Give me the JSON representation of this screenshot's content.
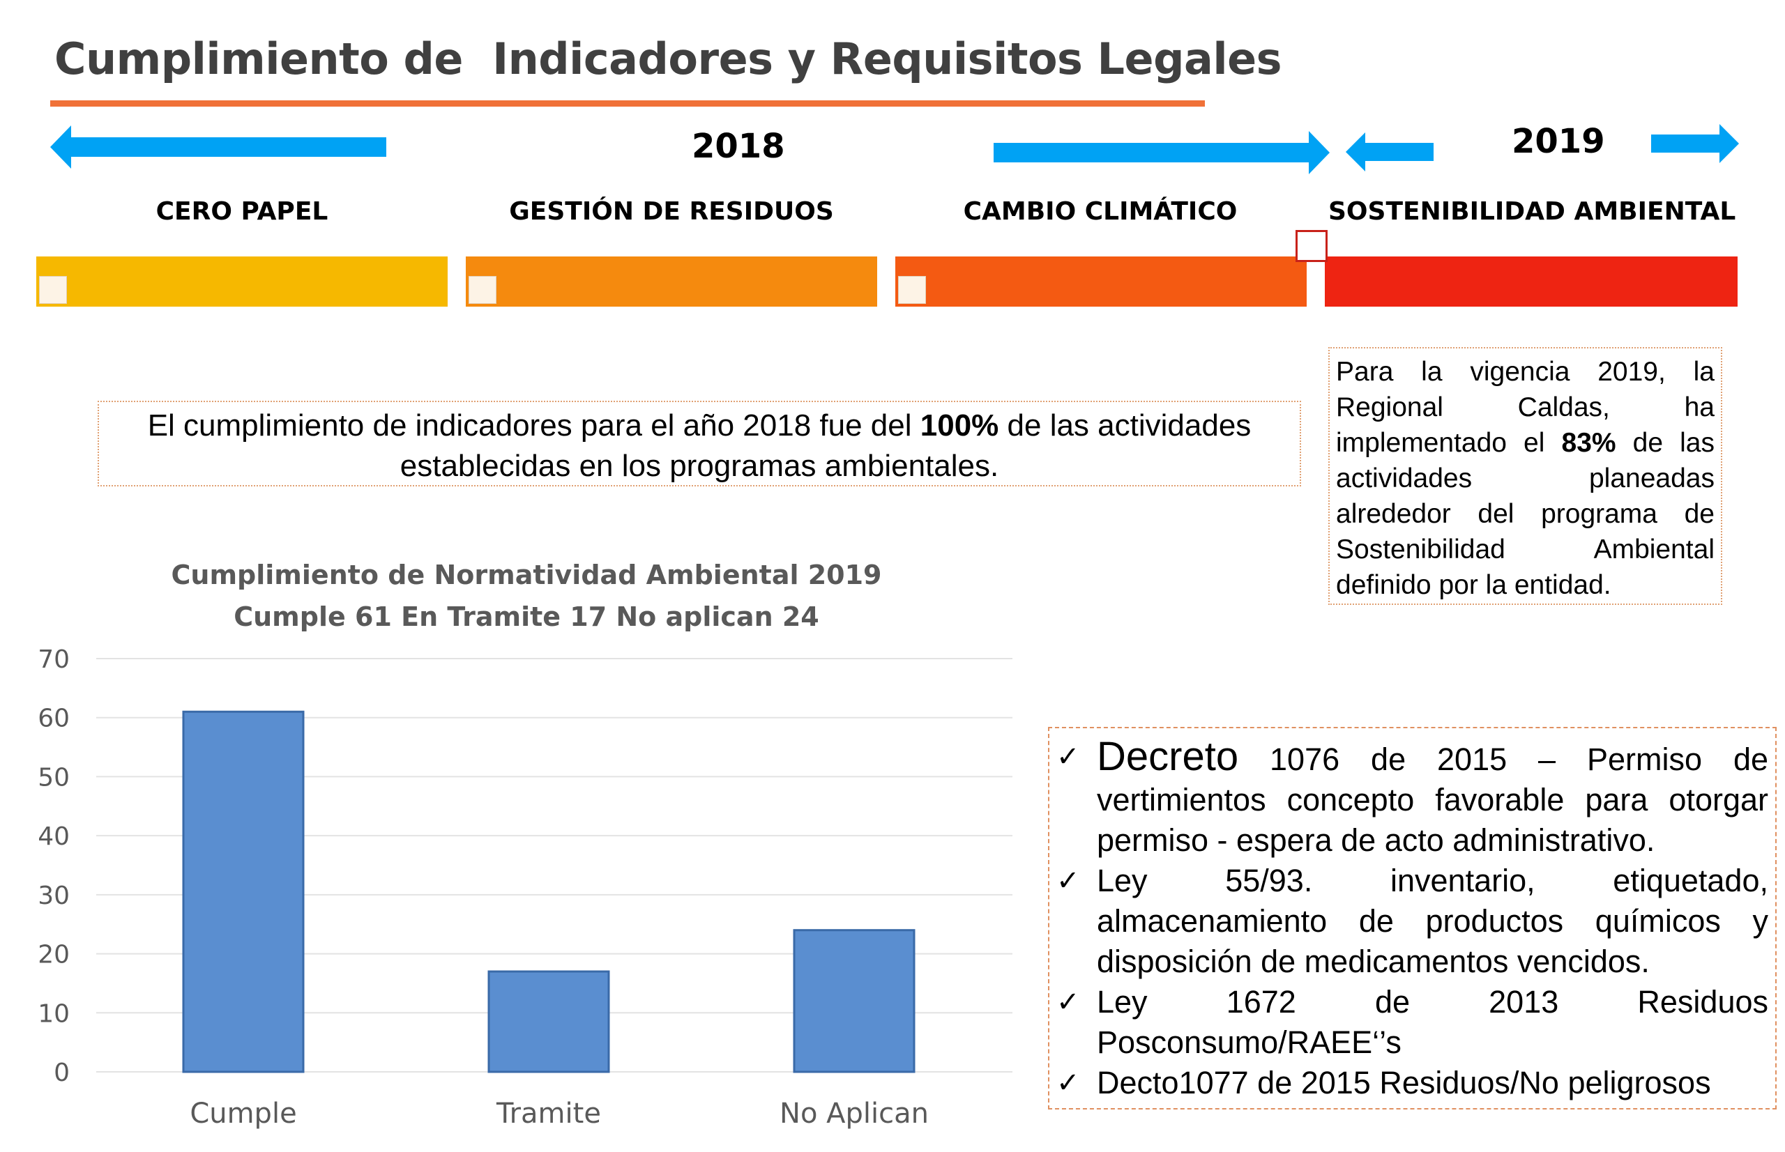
{
  "page": {
    "title": "Cumplimiento de  Indicadores y Requisitos Legales"
  },
  "timeline": {
    "year_2018": "2018",
    "year_2019": "2019",
    "programs": [
      {
        "label": "CERO PAPEL",
        "color": "#f6b800"
      },
      {
        "label": "GESTIÓN DE RESIDUOS",
        "color": "#f58a0e"
      },
      {
        "label": "CAMBIO CLIMÁTICO",
        "color": "#f45a12"
      },
      {
        "label": "SOSTENIBILIDAD AMBIENTAL",
        "color": "#ee2412"
      }
    ],
    "arrow_color": "#00a2f4"
  },
  "summary_2018": {
    "pre": "El cumplimiento de indicadores para el año 2018 fue del ",
    "bold": "100%",
    "post": " de las actividades establecidas en los programas ambientales."
  },
  "summary_2019": {
    "pre": "Para la vigencia 2019, la Regional Caldas, ha implementado el ",
    "bold": "83%",
    "post": " de las actividades planeadas alrededor del programa de Sostenibilidad Ambiental definido por la entidad."
  },
  "chart_data": {
    "type": "bar",
    "title": "Cumplimiento de Normatividad Ambiental 2019",
    "subtitle": "Cumple 61 En Tramite 17 No aplican 24",
    "categories": [
      "Cumple",
      "Tramite",
      "No Aplican"
    ],
    "values": [
      61,
      17,
      24
    ],
    "ylim": [
      0,
      70
    ],
    "yticks": [
      0,
      10,
      20,
      30,
      40,
      50,
      60,
      70
    ],
    "grid": true,
    "bar_color": "#5a8ed0"
  },
  "legal": {
    "items": [
      {
        "check": "✓",
        "big": "Decreto",
        "text": " 1076 de 2015 – Permiso de vertimientos concepto favorable para otorgar permiso -  espera de acto administrativo."
      },
      {
        "check": "✓",
        "big": "",
        "text": "Ley 55/93. inventario, etiquetado, almacenamiento de productos químicos y disposición de medicamentos vencidos."
      },
      {
        "check": "✓",
        "big": "",
        "text": "Ley 1672 de 2013    Residuos Posconsumo/RAEE‘’s"
      },
      {
        "check": "✓",
        "big": "",
        "text": "Decto1077 de 2015 Residuos/No peligrosos"
      }
    ]
  }
}
